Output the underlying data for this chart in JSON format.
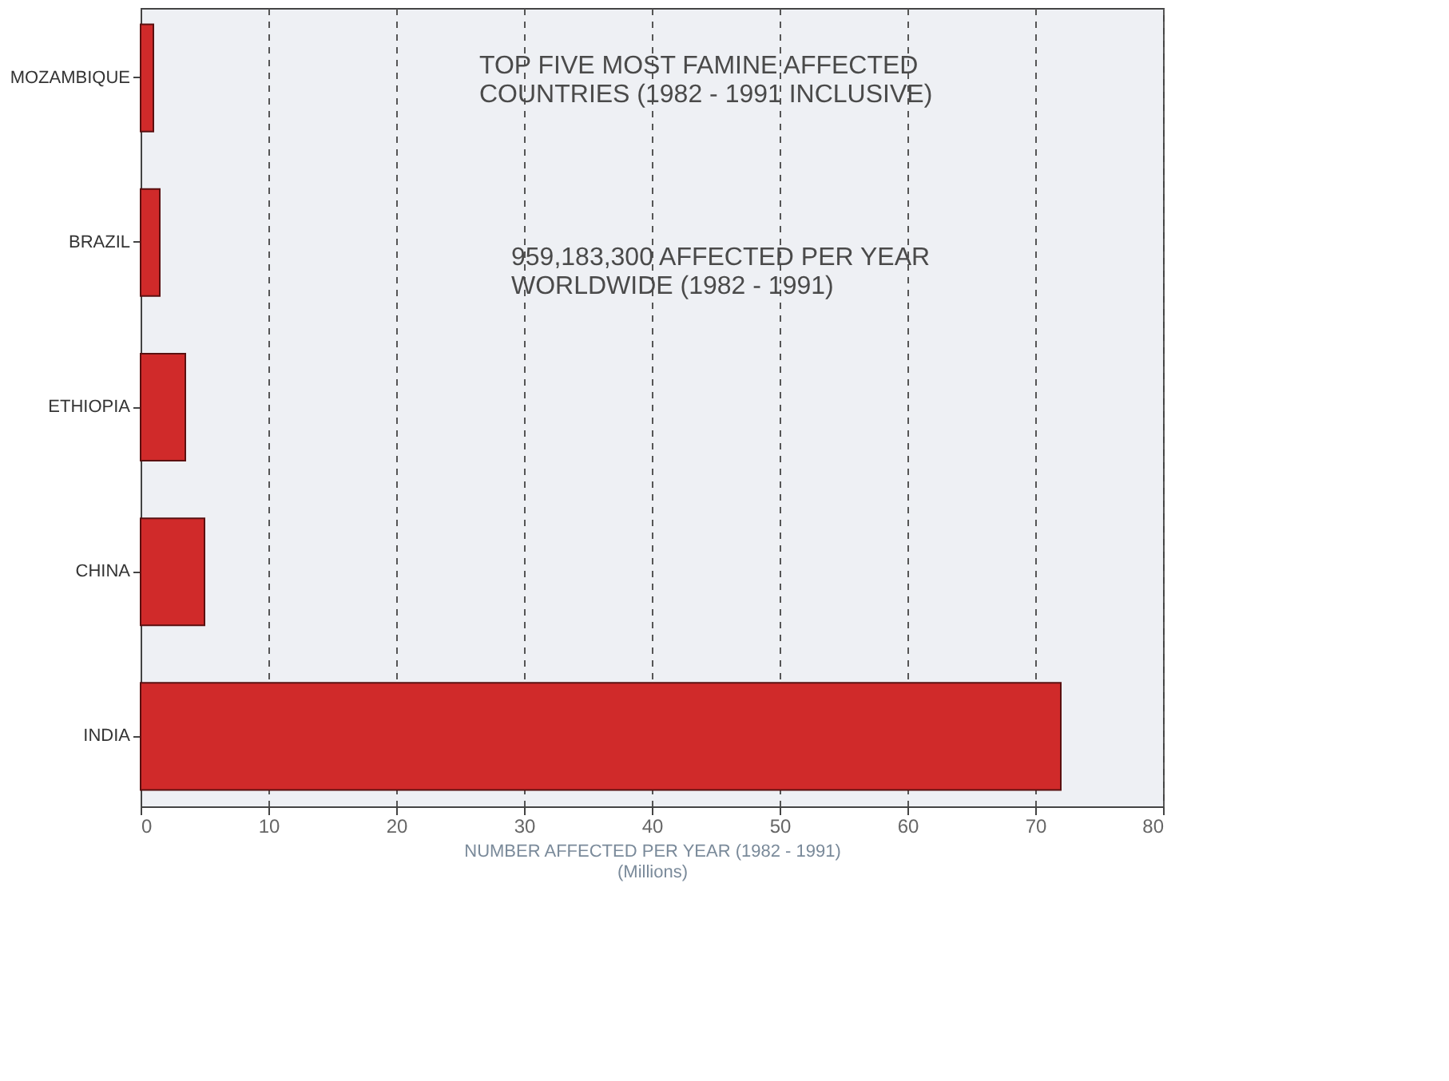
{
  "chart_data": {
    "type": "bar",
    "orientation": "horizontal",
    "title": "TOP FIVE MOST FAMINE AFFECTED\nCOUNTRIES (1982 - 1991 INCLUSIVE)",
    "annotations": [
      "959,183,300 AFFECTED PER YEAR\nWORLDWIDE (1982 - 1991)"
    ],
    "xlabel": "NUMBER AFFECTED PER YEAR (1982 - 1991)\n(Millions)",
    "categories": [
      "MOZAMBIQUE",
      "BRAZIL",
      "ETHIOPIA",
      "CHINA",
      "INDIA"
    ],
    "values": [
      1,
      1.5,
      3.5,
      5,
      72
    ],
    "color": "#d02a2a",
    "xlim": [
      0,
      80
    ],
    "xticks": [
      0,
      10,
      20,
      30,
      40,
      50,
      60,
      70,
      80
    ],
    "grid": "x"
  }
}
